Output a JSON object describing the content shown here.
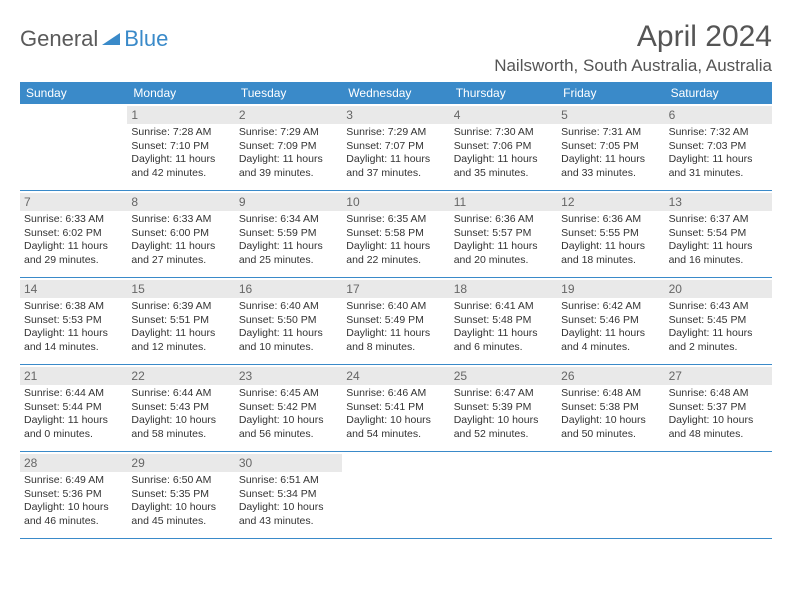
{
  "logo": {
    "word1": "General",
    "word2": "Blue"
  },
  "title": "April 2024",
  "location": "Nailsworth, South Australia, Australia",
  "colors": {
    "accent": "#3a8ac9",
    "daynum_bg": "#e9e9e9",
    "text": "#333333",
    "header_text": "#555555"
  },
  "day_headers": [
    "Sunday",
    "Monday",
    "Tuesday",
    "Wednesday",
    "Thursday",
    "Friday",
    "Saturday"
  ],
  "weeks": [
    [
      null,
      {
        "n": "1",
        "sr": "Sunrise: 7:28 AM",
        "ss": "Sunset: 7:10 PM",
        "d1": "Daylight: 11 hours",
        "d2": "and 42 minutes."
      },
      {
        "n": "2",
        "sr": "Sunrise: 7:29 AM",
        "ss": "Sunset: 7:09 PM",
        "d1": "Daylight: 11 hours",
        "d2": "and 39 minutes."
      },
      {
        "n": "3",
        "sr": "Sunrise: 7:29 AM",
        "ss": "Sunset: 7:07 PM",
        "d1": "Daylight: 11 hours",
        "d2": "and 37 minutes."
      },
      {
        "n": "4",
        "sr": "Sunrise: 7:30 AM",
        "ss": "Sunset: 7:06 PM",
        "d1": "Daylight: 11 hours",
        "d2": "and 35 minutes."
      },
      {
        "n": "5",
        "sr": "Sunrise: 7:31 AM",
        "ss": "Sunset: 7:05 PM",
        "d1": "Daylight: 11 hours",
        "d2": "and 33 minutes."
      },
      {
        "n": "6",
        "sr": "Sunrise: 7:32 AM",
        "ss": "Sunset: 7:03 PM",
        "d1": "Daylight: 11 hours",
        "d2": "and 31 minutes."
      }
    ],
    [
      {
        "n": "7",
        "sr": "Sunrise: 6:33 AM",
        "ss": "Sunset: 6:02 PM",
        "d1": "Daylight: 11 hours",
        "d2": "and 29 minutes."
      },
      {
        "n": "8",
        "sr": "Sunrise: 6:33 AM",
        "ss": "Sunset: 6:00 PM",
        "d1": "Daylight: 11 hours",
        "d2": "and 27 minutes."
      },
      {
        "n": "9",
        "sr": "Sunrise: 6:34 AM",
        "ss": "Sunset: 5:59 PM",
        "d1": "Daylight: 11 hours",
        "d2": "and 25 minutes."
      },
      {
        "n": "10",
        "sr": "Sunrise: 6:35 AM",
        "ss": "Sunset: 5:58 PM",
        "d1": "Daylight: 11 hours",
        "d2": "and 22 minutes."
      },
      {
        "n": "11",
        "sr": "Sunrise: 6:36 AM",
        "ss": "Sunset: 5:57 PM",
        "d1": "Daylight: 11 hours",
        "d2": "and 20 minutes."
      },
      {
        "n": "12",
        "sr": "Sunrise: 6:36 AM",
        "ss": "Sunset: 5:55 PM",
        "d1": "Daylight: 11 hours",
        "d2": "and 18 minutes."
      },
      {
        "n": "13",
        "sr": "Sunrise: 6:37 AM",
        "ss": "Sunset: 5:54 PM",
        "d1": "Daylight: 11 hours",
        "d2": "and 16 minutes."
      }
    ],
    [
      {
        "n": "14",
        "sr": "Sunrise: 6:38 AM",
        "ss": "Sunset: 5:53 PM",
        "d1": "Daylight: 11 hours",
        "d2": "and 14 minutes."
      },
      {
        "n": "15",
        "sr": "Sunrise: 6:39 AM",
        "ss": "Sunset: 5:51 PM",
        "d1": "Daylight: 11 hours",
        "d2": "and 12 minutes."
      },
      {
        "n": "16",
        "sr": "Sunrise: 6:40 AM",
        "ss": "Sunset: 5:50 PM",
        "d1": "Daylight: 11 hours",
        "d2": "and 10 minutes."
      },
      {
        "n": "17",
        "sr": "Sunrise: 6:40 AM",
        "ss": "Sunset: 5:49 PM",
        "d1": "Daylight: 11 hours",
        "d2": "and 8 minutes."
      },
      {
        "n": "18",
        "sr": "Sunrise: 6:41 AM",
        "ss": "Sunset: 5:48 PM",
        "d1": "Daylight: 11 hours",
        "d2": "and 6 minutes."
      },
      {
        "n": "19",
        "sr": "Sunrise: 6:42 AM",
        "ss": "Sunset: 5:46 PM",
        "d1": "Daylight: 11 hours",
        "d2": "and 4 minutes."
      },
      {
        "n": "20",
        "sr": "Sunrise: 6:43 AM",
        "ss": "Sunset: 5:45 PM",
        "d1": "Daylight: 11 hours",
        "d2": "and 2 minutes."
      }
    ],
    [
      {
        "n": "21",
        "sr": "Sunrise: 6:44 AM",
        "ss": "Sunset: 5:44 PM",
        "d1": "Daylight: 11 hours",
        "d2": "and 0 minutes."
      },
      {
        "n": "22",
        "sr": "Sunrise: 6:44 AM",
        "ss": "Sunset: 5:43 PM",
        "d1": "Daylight: 10 hours",
        "d2": "and 58 minutes."
      },
      {
        "n": "23",
        "sr": "Sunrise: 6:45 AM",
        "ss": "Sunset: 5:42 PM",
        "d1": "Daylight: 10 hours",
        "d2": "and 56 minutes."
      },
      {
        "n": "24",
        "sr": "Sunrise: 6:46 AM",
        "ss": "Sunset: 5:41 PM",
        "d1": "Daylight: 10 hours",
        "d2": "and 54 minutes."
      },
      {
        "n": "25",
        "sr": "Sunrise: 6:47 AM",
        "ss": "Sunset: 5:39 PM",
        "d1": "Daylight: 10 hours",
        "d2": "and 52 minutes."
      },
      {
        "n": "26",
        "sr": "Sunrise: 6:48 AM",
        "ss": "Sunset: 5:38 PM",
        "d1": "Daylight: 10 hours",
        "d2": "and 50 minutes."
      },
      {
        "n": "27",
        "sr": "Sunrise: 6:48 AM",
        "ss": "Sunset: 5:37 PM",
        "d1": "Daylight: 10 hours",
        "d2": "and 48 minutes."
      }
    ],
    [
      {
        "n": "28",
        "sr": "Sunrise: 6:49 AM",
        "ss": "Sunset: 5:36 PM",
        "d1": "Daylight: 10 hours",
        "d2": "and 46 minutes."
      },
      {
        "n": "29",
        "sr": "Sunrise: 6:50 AM",
        "ss": "Sunset: 5:35 PM",
        "d1": "Daylight: 10 hours",
        "d2": "and 45 minutes."
      },
      {
        "n": "30",
        "sr": "Sunrise: 6:51 AM",
        "ss": "Sunset: 5:34 PM",
        "d1": "Daylight: 10 hours",
        "d2": "and 43 minutes."
      },
      null,
      null,
      null,
      null
    ]
  ]
}
